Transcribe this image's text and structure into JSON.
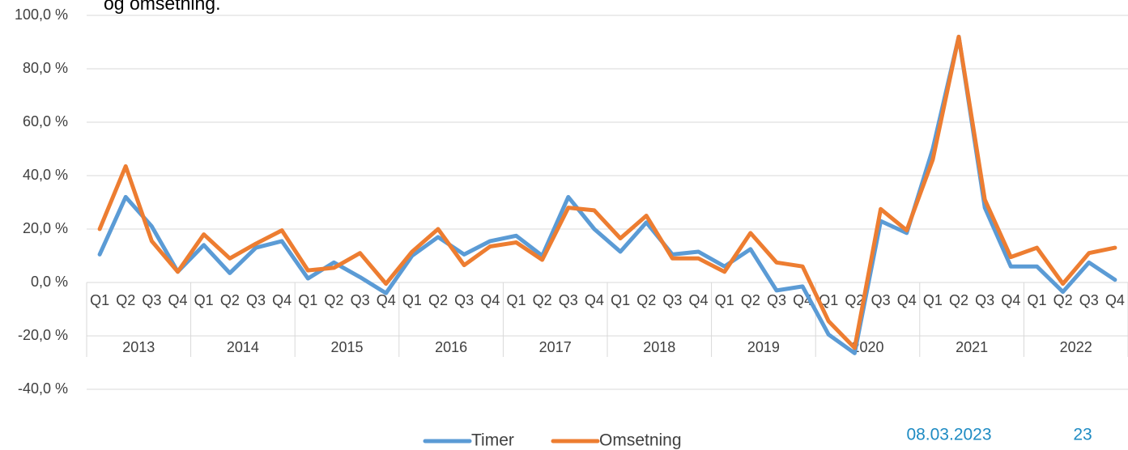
{
  "chart_data": {
    "type": "line",
    "title": "og omsetning.",
    "categories": [
      "Q1",
      "Q2",
      "Q3",
      "Q4",
      "Q1",
      "Q2",
      "Q3",
      "Q4",
      "Q1",
      "Q2",
      "Q3",
      "Q4",
      "Q1",
      "Q2",
      "Q3",
      "Q4",
      "Q1",
      "Q2",
      "Q3",
      "Q4",
      "Q1",
      "Q2",
      "Q3",
      "Q4",
      "Q1",
      "Q2",
      "Q3",
      "Q4",
      "Q1",
      "Q2",
      "Q3",
      "Q4",
      "Q1",
      "Q2",
      "Q3",
      "Q4",
      "Q1",
      "Q2",
      "Q3",
      "Q4"
    ],
    "groups": [
      "2013",
      "2014",
      "2015",
      "2016",
      "2017",
      "2018",
      "2019",
      "2020",
      "2021",
      "2022"
    ],
    "series": [
      {
        "name": "Timer",
        "color": "#5b9bd5",
        "values": [
          10.5,
          32,
          21,
          4,
          14,
          3.5,
          13,
          15.5,
          1.5,
          7.5,
          2,
          -4,
          10,
          17,
          10.5,
          15.5,
          17.5,
          10,
          32,
          20,
          11.5,
          22.5,
          10.5,
          11.5,
          6,
          12.5,
          -3,
          -1.5,
          -19.5,
          -26.5,
          23,
          18.5,
          50,
          92,
          28,
          6,
          6,
          -3.5,
          7.5,
          1
        ]
      },
      {
        "name": "Omsetning",
        "color": "#ed7d31",
        "values": [
          20,
          43.5,
          15.5,
          4,
          18,
          9,
          14.5,
          19.5,
          4.5,
          5.5,
          11,
          -0.5,
          11.5,
          20,
          6.5,
          13.5,
          15,
          8.5,
          28,
          27,
          16.5,
          25,
          9,
          9,
          4,
          18.5,
          7.5,
          6,
          -14.5,
          -24.5,
          27.5,
          19.5,
          46,
          92,
          31,
          9.5,
          13,
          -0.5,
          11,
          13
        ]
      }
    ],
    "ylim": [
      -40,
      100
    ],
    "yticks": [
      {
        "value": -40,
        "label": "-40,0 %"
      },
      {
        "value": -20,
        "label": "-20,0 %"
      },
      {
        "value": 0,
        "label": "0,0 %"
      },
      {
        "value": 20,
        "label": "20,0 %"
      },
      {
        "value": 40,
        "label": "40,0 %"
      },
      {
        "value": 60,
        "label": "60,0 %"
      },
      {
        "value": 80,
        "label": "80,0 %"
      },
      {
        "value": 100,
        "label": "100,0 %"
      }
    ],
    "grid": true,
    "legend": "bottom",
    "footer_date": "08.03.2023",
    "page_number": "23"
  }
}
